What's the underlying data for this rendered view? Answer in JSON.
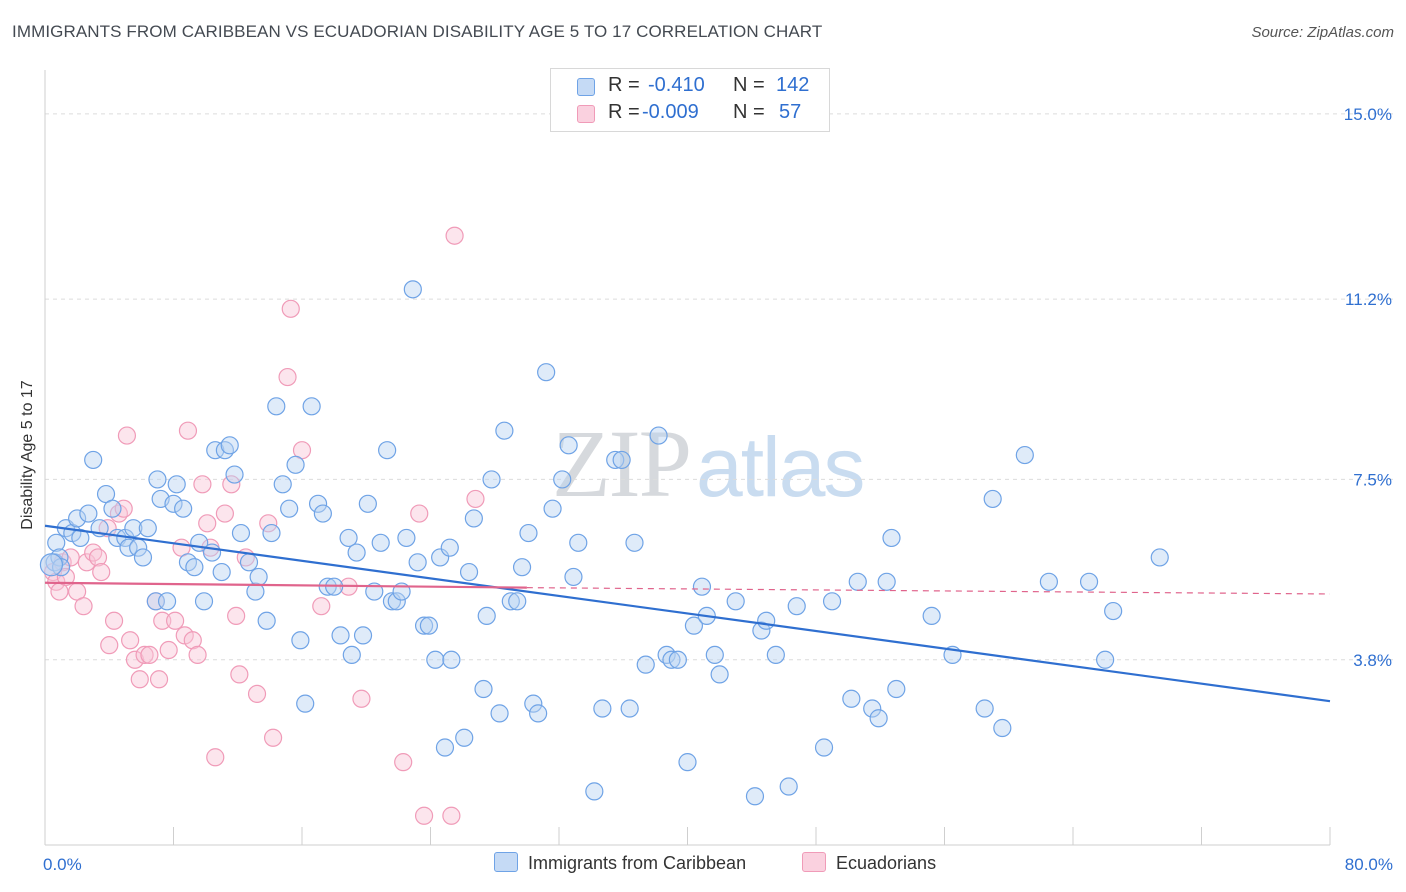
{
  "title": "IMMIGRANTS FROM CARIBBEAN VS ECUADORIAN DISABILITY AGE 5 TO 17 CORRELATION CHART",
  "source": "Source: ZipAtlas.com",
  "watermark": {
    "zip": "ZIP",
    "atlas": "atlas"
  },
  "colors": {
    "blue": "#6fa3e6",
    "blue_line": "#2f6fd0",
    "pink": "#f09bb8",
    "pink_line": "#e0648c",
    "axis_text": "#2f6fd0"
  },
  "legend": {
    "rows": [
      {
        "r_label": "R =",
        "r_value": "-0.410",
        "n_label": "N =",
        "n_value": "142"
      },
      {
        "r_label": "R =",
        "r_value": "-0.009",
        "n_label": "N =",
        "n_value": "57"
      }
    ]
  },
  "bottom_legend": {
    "series1": "Immigrants from Caribbean",
    "series2": "Ecuadorians"
  },
  "chart_data": {
    "type": "scatter",
    "title": "IMMIGRANTS FROM CARIBBEAN VS ECUADORIAN DISABILITY AGE 5 TO 17 CORRELATION CHART",
    "xlabel": "",
    "ylabel": "Disability Age 5 to 17",
    "xlim": [
      0,
      80
    ],
    "ylim": [
      0,
      15.9
    ],
    "x_tick_labels": [
      "0.0%",
      "80.0%"
    ],
    "y_ticks": [
      3.8,
      7.5,
      11.2,
      15.0
    ],
    "y_tick_labels": [
      "3.8%",
      "7.5%",
      "11.2%",
      "15.0%"
    ],
    "grid": true,
    "legend_position": "top-center",
    "series": [
      {
        "name": "Immigrants from Caribbean",
        "color": "#6fa3e6",
        "trend": {
          "x": [
            0,
            80
          ],
          "y": [
            6.55,
            2.95
          ]
        },
        "points": [
          [
            0.6,
            5.8
          ],
          [
            0.7,
            6.2
          ],
          [
            0.9,
            5.9
          ],
          [
            1.0,
            5.7
          ],
          [
            1.3,
            6.5
          ],
          [
            1.7,
            6.4
          ],
          [
            2.0,
            6.7
          ],
          [
            2.2,
            6.3
          ],
          [
            2.7,
            6.8
          ],
          [
            3.0,
            7.9
          ],
          [
            3.4,
            6.5
          ],
          [
            3.8,
            7.2
          ],
          [
            4.2,
            6.9
          ],
          [
            4.5,
            6.3
          ],
          [
            5.0,
            6.3
          ],
          [
            5.2,
            6.1
          ],
          [
            5.5,
            6.5
          ],
          [
            5.8,
            6.1
          ],
          [
            6.1,
            5.9
          ],
          [
            6.4,
            6.5
          ],
          [
            6.9,
            5.0
          ],
          [
            7.0,
            7.5
          ],
          [
            7.2,
            7.1
          ],
          [
            7.6,
            5.0
          ],
          [
            8.0,
            7.0
          ],
          [
            8.2,
            7.4
          ],
          [
            8.6,
            6.9
          ],
          [
            8.9,
            5.8
          ],
          [
            9.3,
            5.7
          ],
          [
            9.6,
            6.2
          ],
          [
            9.9,
            5.0
          ],
          [
            10.4,
            6.0
          ],
          [
            10.6,
            8.1
          ],
          [
            11.0,
            5.6
          ],
          [
            11.2,
            8.1
          ],
          [
            11.5,
            8.2
          ],
          [
            11.8,
            7.6
          ],
          [
            12.2,
            6.4
          ],
          [
            12.7,
            5.8
          ],
          [
            13.1,
            5.2
          ],
          [
            13.3,
            5.5
          ],
          [
            13.8,
            4.6
          ],
          [
            14.1,
            6.4
          ],
          [
            14.4,
            9.0
          ],
          [
            14.8,
            7.4
          ],
          [
            15.2,
            6.9
          ],
          [
            15.6,
            7.8
          ],
          [
            15.9,
            4.2
          ],
          [
            16.2,
            2.9
          ],
          [
            16.6,
            9.0
          ],
          [
            17.0,
            7.0
          ],
          [
            17.3,
            6.8
          ],
          [
            17.6,
            5.3
          ],
          [
            18.0,
            5.3
          ],
          [
            18.4,
            4.3
          ],
          [
            18.9,
            6.3
          ],
          [
            19.1,
            3.9
          ],
          [
            19.4,
            6.0
          ],
          [
            19.8,
            4.3
          ],
          [
            20.1,
            7.0
          ],
          [
            20.5,
            5.2
          ],
          [
            20.9,
            6.2
          ],
          [
            21.3,
            8.1
          ],
          [
            21.6,
            5.0
          ],
          [
            21.9,
            5.0
          ],
          [
            22.2,
            5.2
          ],
          [
            22.5,
            6.3
          ],
          [
            22.9,
            11.4
          ],
          [
            23.2,
            5.8
          ],
          [
            23.6,
            4.5
          ],
          [
            23.9,
            4.5
          ],
          [
            24.3,
            3.8
          ],
          [
            24.6,
            5.9
          ],
          [
            24.9,
            2.0
          ],
          [
            25.2,
            6.1
          ],
          [
            25.3,
            3.8
          ],
          [
            26.1,
            2.2
          ],
          [
            26.4,
            5.6
          ],
          [
            26.7,
            6.7
          ],
          [
            27.3,
            3.2
          ],
          [
            27.5,
            4.7
          ],
          [
            27.8,
            7.5
          ],
          [
            28.3,
            2.7
          ],
          [
            28.6,
            8.5
          ],
          [
            29.0,
            5.0
          ],
          [
            29.4,
            5.0
          ],
          [
            29.7,
            5.7
          ],
          [
            30.1,
            6.4
          ],
          [
            30.4,
            2.9
          ],
          [
            30.7,
            2.7
          ],
          [
            31.2,
            9.7
          ],
          [
            31.6,
            6.9
          ],
          [
            32.2,
            7.5
          ],
          [
            32.6,
            8.2
          ],
          [
            32.9,
            5.5
          ],
          [
            33.2,
            6.2
          ],
          [
            34.2,
            1.1
          ],
          [
            34.7,
            2.8
          ],
          [
            35.5,
            7.9
          ],
          [
            35.9,
            7.9
          ],
          [
            36.4,
            2.8
          ],
          [
            36.7,
            6.2
          ],
          [
            37.4,
            3.7
          ],
          [
            38.2,
            8.4
          ],
          [
            38.7,
            3.9
          ],
          [
            39.0,
            3.8
          ],
          [
            39.4,
            3.8
          ],
          [
            40.0,
            1.7
          ],
          [
            40.4,
            4.5
          ],
          [
            40.9,
            5.3
          ],
          [
            41.2,
            4.7
          ],
          [
            41.7,
            3.9
          ],
          [
            42.0,
            3.5
          ],
          [
            43.0,
            5.0
          ],
          [
            44.2,
            1.0
          ],
          [
            44.6,
            4.4
          ],
          [
            44.9,
            4.6
          ],
          [
            45.5,
            3.9
          ],
          [
            46.3,
            1.2
          ],
          [
            46.8,
            4.9
          ],
          [
            48.5,
            2.0
          ],
          [
            49.0,
            5.0
          ],
          [
            50.2,
            3.0
          ],
          [
            50.6,
            5.4
          ],
          [
            51.5,
            2.8
          ],
          [
            51.9,
            2.6
          ],
          [
            52.4,
            5.4
          ],
          [
            52.7,
            6.3
          ],
          [
            53.0,
            3.2
          ],
          [
            55.2,
            4.7
          ],
          [
            56.5,
            3.9
          ],
          [
            58.5,
            2.8
          ],
          [
            59.0,
            7.1
          ],
          [
            59.6,
            2.4
          ],
          [
            61.0,
            8.0
          ],
          [
            62.5,
            5.4
          ],
          [
            65.0,
            5.4
          ],
          [
            66.0,
            3.8
          ],
          [
            66.5,
            4.8
          ],
          [
            69.4,
            5.9
          ]
        ]
      },
      {
        "name": "Ecuadorians",
        "color": "#f09bb8",
        "trend": {
          "x": [
            0,
            30
          ],
          "y": [
            5.38,
            5.28
          ],
          "dashed_x": [
            30,
            80
          ],
          "dashed_y": [
            5.28,
            5.15
          ]
        },
        "points": [
          [
            0.5,
            5.6
          ],
          [
            0.7,
            5.4
          ],
          [
            0.9,
            5.2
          ],
          [
            1.1,
            5.8
          ],
          [
            1.3,
            5.5
          ],
          [
            1.6,
            5.9
          ],
          [
            2.0,
            5.2
          ],
          [
            2.4,
            4.9
          ],
          [
            2.6,
            5.8
          ],
          [
            3.0,
            6.0
          ],
          [
            3.3,
            5.9
          ],
          [
            3.5,
            5.6
          ],
          [
            3.9,
            6.5
          ],
          [
            4.0,
            4.1
          ],
          [
            4.3,
            4.6
          ],
          [
            4.6,
            6.8
          ],
          [
            4.9,
            6.9
          ],
          [
            5.1,
            8.4
          ],
          [
            5.3,
            4.2
          ],
          [
            5.6,
            3.8
          ],
          [
            5.9,
            3.4
          ],
          [
            6.2,
            3.9
          ],
          [
            6.5,
            3.9
          ],
          [
            6.9,
            5.0
          ],
          [
            7.1,
            3.4
          ],
          [
            7.3,
            4.6
          ],
          [
            7.7,
            4.0
          ],
          [
            8.1,
            4.6
          ],
          [
            8.5,
            6.1
          ],
          [
            8.7,
            4.3
          ],
          [
            8.9,
            8.5
          ],
          [
            9.2,
            4.2
          ],
          [
            9.5,
            3.9
          ],
          [
            9.8,
            7.4
          ],
          [
            10.1,
            6.6
          ],
          [
            10.3,
            6.1
          ],
          [
            10.6,
            1.8
          ],
          [
            11.2,
            6.8
          ],
          [
            11.6,
            7.4
          ],
          [
            11.9,
            4.7
          ],
          [
            12.1,
            3.5
          ],
          [
            12.5,
            5.9
          ],
          [
            13.2,
            3.1
          ],
          [
            13.9,
            6.6
          ],
          [
            14.2,
            2.2
          ],
          [
            15.1,
            9.6
          ],
          [
            15.3,
            11.0
          ],
          [
            16.0,
            8.1
          ],
          [
            17.2,
            4.9
          ],
          [
            18.9,
            5.3
          ],
          [
            19.7,
            3.0
          ],
          [
            22.3,
            1.7
          ],
          [
            23.3,
            6.8
          ],
          [
            23.6,
            0.6
          ],
          [
            25.3,
            0.6
          ],
          [
            25.5,
            12.5
          ],
          [
            26.8,
            7.1
          ]
        ]
      }
    ]
  }
}
